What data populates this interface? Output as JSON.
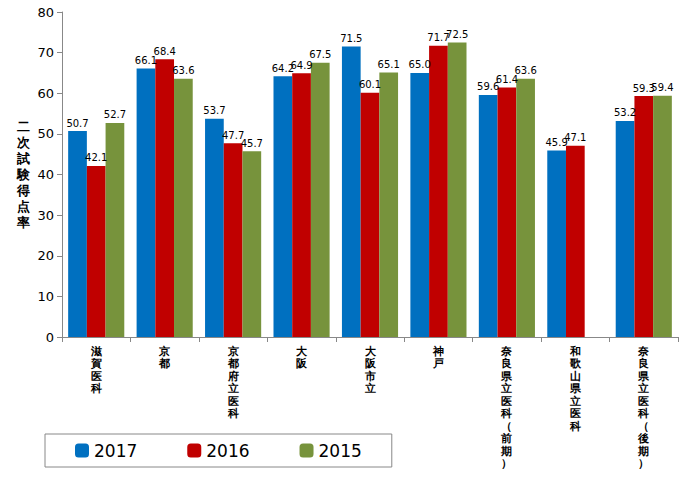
{
  "chart_data": {
    "type": "bar",
    "y_label": "二次試験得点率",
    "categories": [
      "滋賀医科",
      "京都",
      "京都府立医科",
      "大阪",
      "大阪市立",
      "神戸",
      "奈良県立医科（前期）",
      "和歌山県立医科",
      "奈良県立医科（後期）"
    ],
    "series": [
      {
        "name": "2017",
        "color": "#0070C0",
        "values": [
          50.7,
          66.1,
          53.7,
          64.2,
          71.5,
          65.0,
          59.6,
          45.9,
          53.2
        ],
        "value_labels": [
          "50.7",
          "66.1",
          "53.7",
          "64.2",
          "71.5",
          "65.0",
          "59.6",
          "45.9",
          "53.2"
        ]
      },
      {
        "name": "2016",
        "color": "#C00000",
        "values": [
          42.1,
          68.4,
          47.7,
          64.9,
          60.1,
          71.7,
          61.4,
          47.1,
          59.3
        ],
        "value_labels": [
          "42.1",
          "68.4",
          "47.7",
          "64.9",
          "60.1",
          "71.7",
          "61.4",
          "47.1",
          "59.3"
        ]
      },
      {
        "name": "2015",
        "color": "#77933C",
        "values": [
          52.7,
          63.6,
          45.7,
          67.5,
          65.1,
          72.5,
          63.6,
          null,
          59.4
        ],
        "value_labels": [
          "52.7",
          "63.6",
          "45.7",
          "67.5",
          "65.1",
          "72.5",
          "63.6",
          null,
          "59.4"
        ]
      }
    ],
    "ylim": [
      0,
      80
    ],
    "yticks": [
      0,
      10,
      20,
      30,
      40,
      50,
      60,
      70,
      80
    ],
    "grid": false,
    "legend": "bottom",
    "data_labels": true
  }
}
